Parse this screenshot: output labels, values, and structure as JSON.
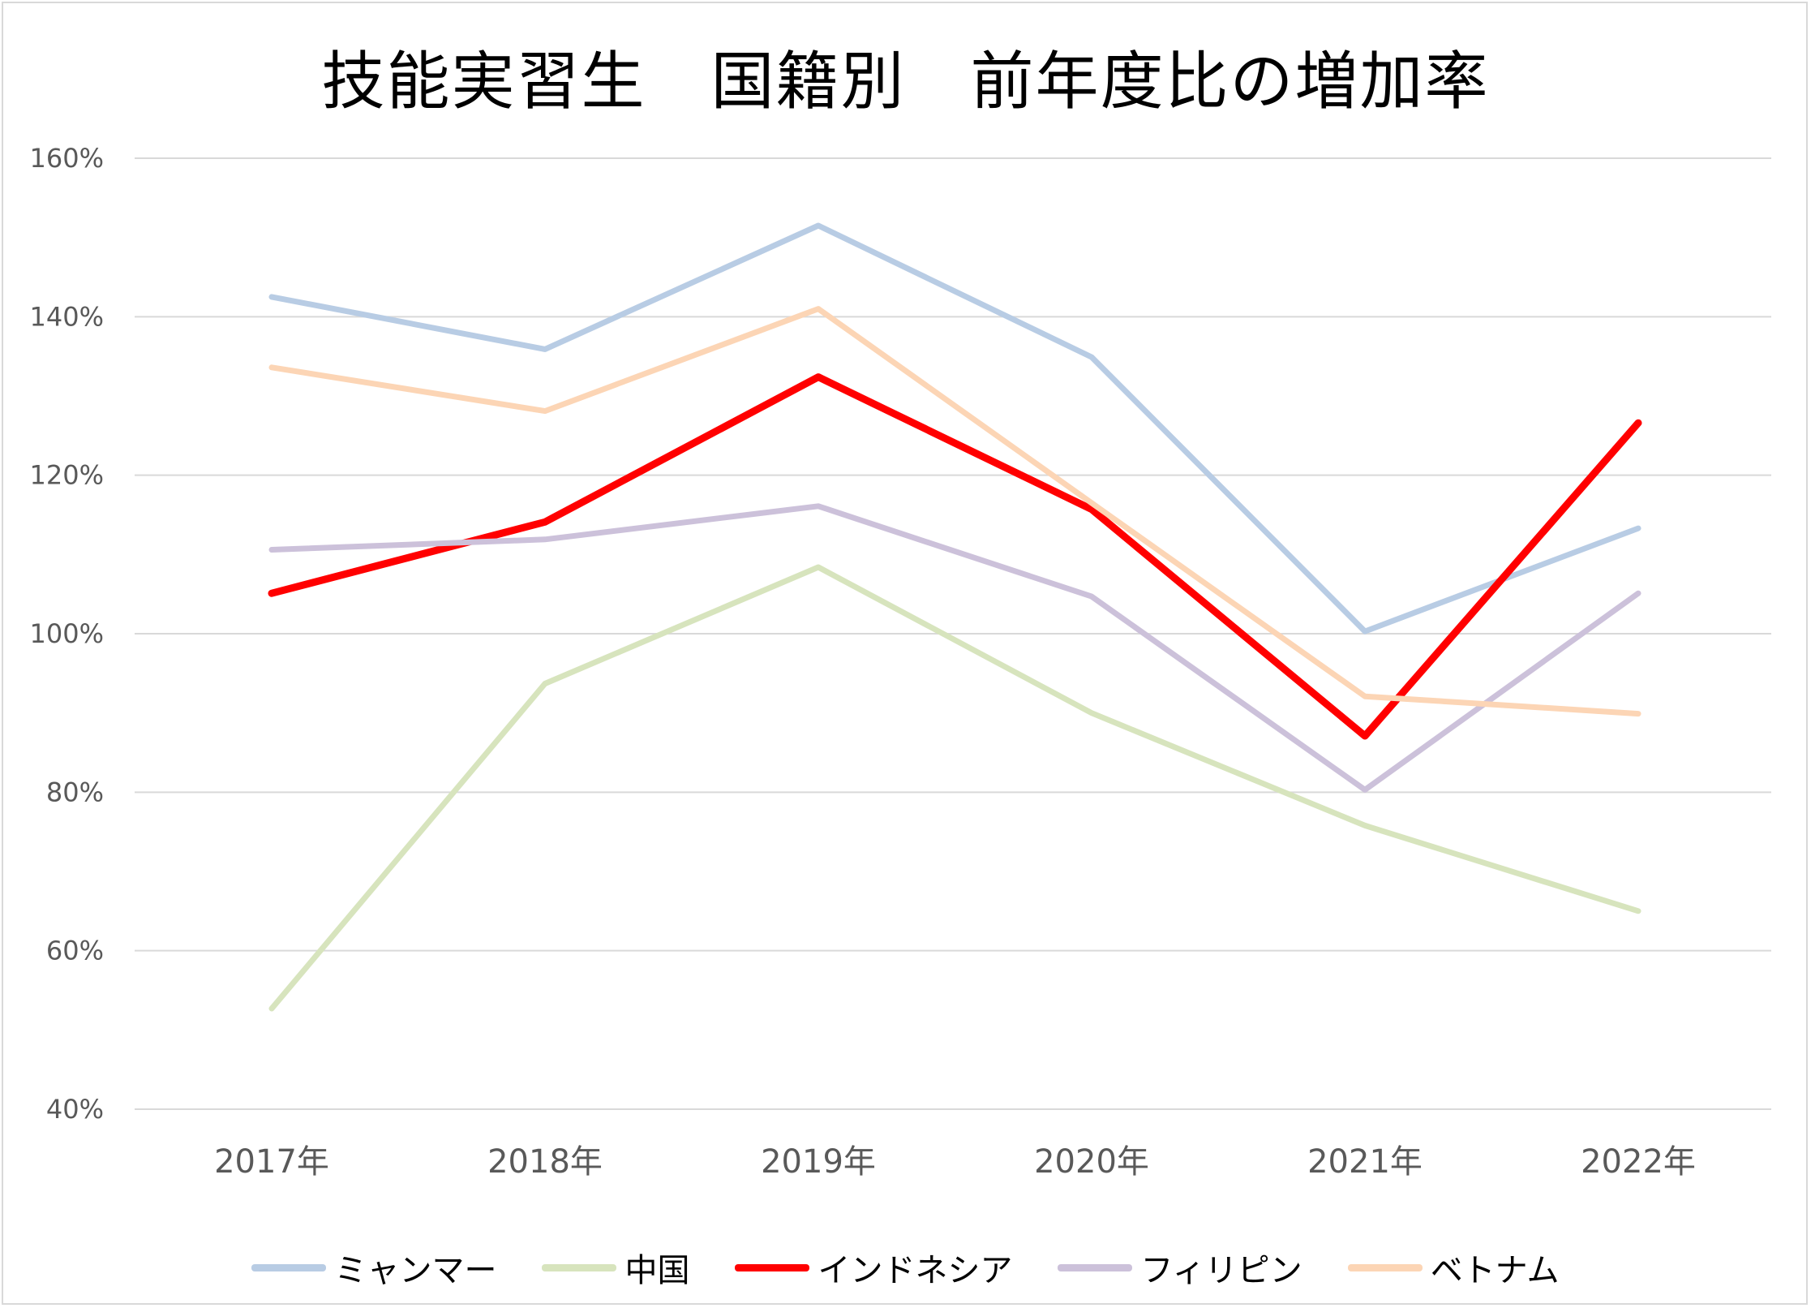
{
  "chart_data": {
    "type": "line",
    "title": "技能実習生　国籍別　前年度比の増加率",
    "xlabel": "",
    "ylabel": "",
    "categories": [
      "2017年",
      "2018年",
      "2019年",
      "2020年",
      "2021年",
      "2022年"
    ],
    "ylim": [
      40,
      160
    ],
    "yticks": [
      40,
      60,
      80,
      100,
      120,
      140,
      160
    ],
    "ytick_labels": [
      "40%",
      "60%",
      "80%",
      "100%",
      "120%",
      "140%",
      "160%"
    ],
    "grid": true,
    "legend_position": "bottom",
    "series": [
      {
        "name": "ミャンマー",
        "color": "#b8cce4",
        "values": [
          142.5,
          135.9,
          151.5,
          134.9,
          100.3,
          113.3
        ]
      },
      {
        "name": "中国",
        "color": "#d7e4bd",
        "values": [
          52.7,
          93.7,
          108.4,
          90.0,
          75.8,
          65.0
        ]
      },
      {
        "name": "インドネシア",
        "color": "#ff0000",
        "values": [
          105.1,
          114.1,
          132.4,
          115.7,
          87.1,
          126.6
        ]
      },
      {
        "name": "フィリピン",
        "color": "#ccc1da",
        "values": [
          110.6,
          111.9,
          116.1,
          104.7,
          80.3,
          105.1
        ]
      },
      {
        "name": "ベトナム",
        "color": "#fcd5b5",
        "values": [
          133.6,
          128.1,
          141.0,
          116.5,
          92.1,
          89.9
        ]
      }
    ]
  }
}
